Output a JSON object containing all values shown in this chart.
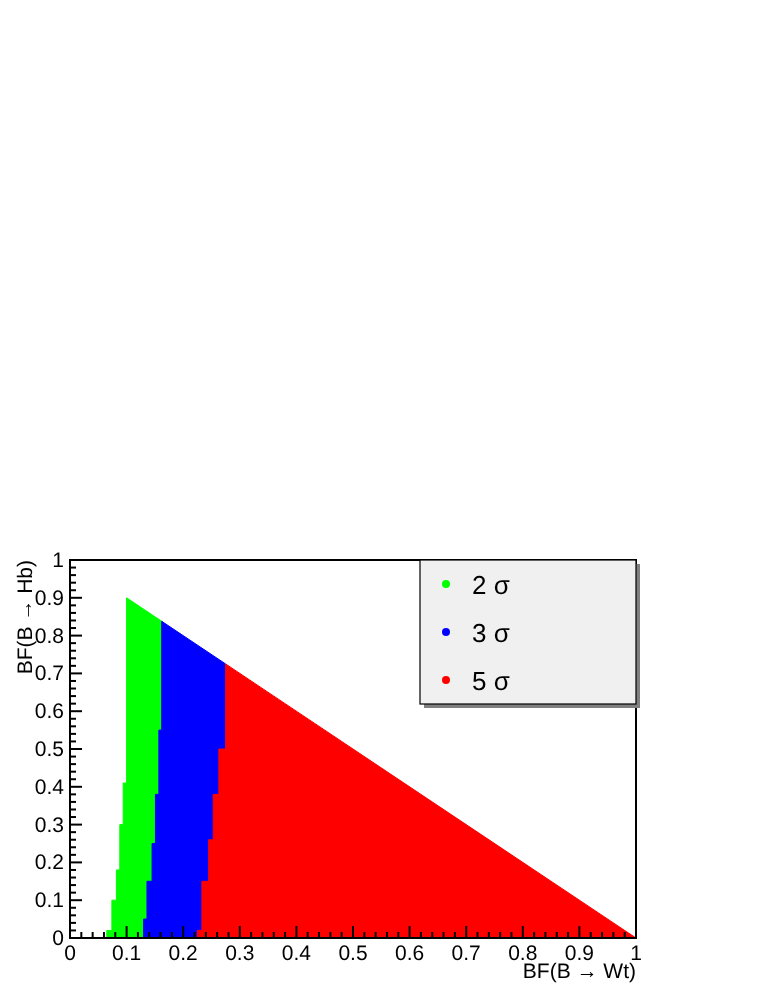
{
  "chart_data": {
    "type": "area",
    "xlabel": "BF(B → Wt)",
    "ylabel": "BF(B → Hb)",
    "xlim": [
      0,
      1
    ],
    "ylim": [
      0,
      1
    ],
    "xticks": [
      0,
      0.1,
      0.2,
      0.3,
      0.4,
      0.5,
      0.6,
      0.7,
      0.8,
      0.9,
      1
    ],
    "yticks": [
      0,
      0.1,
      0.2,
      0.3,
      0.4,
      0.5,
      0.6,
      0.7,
      0.8,
      0.9,
      1
    ],
    "legend": "top right",
    "grid": false,
    "series": [
      {
        "name": "2 σ",
        "color": "#00ff00",
        "x": [
          0.065,
          0.065,
          0.074,
          0.074,
          0.082,
          0.082,
          0.088,
          0.088,
          0.094,
          0.094,
          0.1,
          0.1,
          0.162,
          0.162
        ],
        "values": [
          0,
          0.02,
          0.02,
          0.1,
          0.1,
          0.18,
          0.18,
          0.3,
          0.3,
          0.41,
          0.41,
          0.9,
          0.838,
          0
        ]
      },
      {
        "name": "3 σ",
        "color": "#0000ff",
        "x": [
          0.13,
          0.13,
          0.136,
          0.136,
          0.145,
          0.145,
          0.151,
          0.151,
          0.157,
          0.157,
          0.162,
          0.162,
          0.275,
          0.275
        ],
        "values": [
          0,
          0.05,
          0.05,
          0.15,
          0.15,
          0.25,
          0.25,
          0.38,
          0.38,
          0.55,
          0.55,
          0.838,
          0.725,
          0
        ]
      },
      {
        "name": "5 σ",
        "color": "#ff0000",
        "x": [
          0.225,
          0.225,
          0.233,
          0.233,
          0.245,
          0.245,
          0.253,
          0.253,
          0.263,
          0.263,
          0.275,
          0.275,
          1
        ],
        "values": [
          0,
          0.02,
          0.02,
          0.15,
          0.15,
          0.26,
          0.26,
          0.38,
          0.38,
          0.5,
          0.5,
          0.725,
          0
        ]
      }
    ]
  }
}
